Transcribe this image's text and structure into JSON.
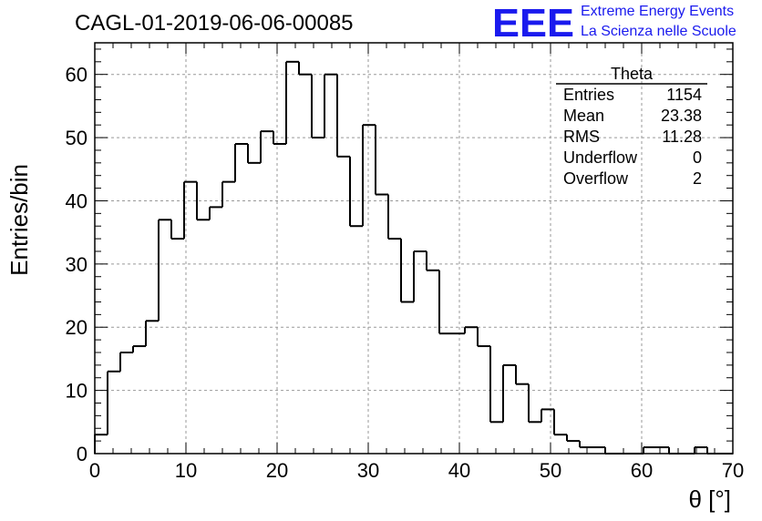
{
  "header": {
    "title": "CAGL-01-2019-06-06-00085"
  },
  "logo": {
    "letters": "EEE",
    "line1": "Extreme Energy Events",
    "line2": "La Scienza nelle Scuole",
    "color": "#1a1aee"
  },
  "stats": {
    "name": "Theta",
    "rows": [
      {
        "label": "Entries",
        "value": "1154"
      },
      {
        "label": "Mean",
        "value": "23.38"
      },
      {
        "label": "RMS",
        "value": "11.28"
      },
      {
        "label": "Underflow",
        "value": "0"
      },
      {
        "label": "Overflow",
        "value": "2"
      }
    ]
  },
  "chart_data": {
    "type": "histogram",
    "title": "CAGL-01-2019-06-06-00085",
    "xlabel": "θ [°]",
    "ylabel": "Entries/bin",
    "xlim": [
      0,
      70
    ],
    "ylim": [
      0,
      65
    ],
    "bin_width": 1.4,
    "x_ticks": [
      0,
      10,
      20,
      30,
      40,
      50,
      60,
      70
    ],
    "y_ticks": [
      0,
      10,
      20,
      30,
      40,
      50,
      60
    ],
    "grid": true,
    "line_color": "#000000",
    "bin_edges_start": 0,
    "values": [
      3,
      13,
      16,
      17,
      21,
      37,
      34,
      43,
      37,
      39,
      43,
      49,
      46,
      51,
      49,
      62,
      60,
      50,
      60,
      47,
      36,
      52,
      41,
      34,
      24,
      32,
      29,
      19,
      19,
      20,
      17,
      5,
      14,
      11,
      5,
      7,
      3,
      2,
      1,
      1,
      0,
      0,
      0,
      1,
      1,
      0,
      0,
      1,
      0,
      0
    ]
  }
}
